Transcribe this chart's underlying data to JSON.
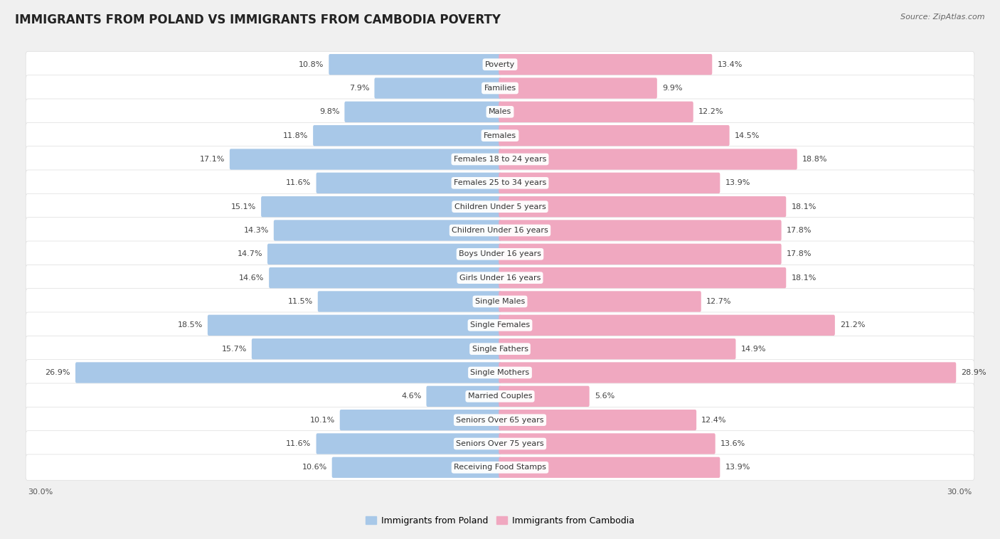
{
  "title": "IMMIGRANTS FROM POLAND VS IMMIGRANTS FROM CAMBODIA POVERTY",
  "source": "Source: ZipAtlas.com",
  "categories": [
    "Poverty",
    "Families",
    "Males",
    "Females",
    "Females 18 to 24 years",
    "Females 25 to 34 years",
    "Children Under 5 years",
    "Children Under 16 years",
    "Boys Under 16 years",
    "Girls Under 16 years",
    "Single Males",
    "Single Females",
    "Single Fathers",
    "Single Mothers",
    "Married Couples",
    "Seniors Over 65 years",
    "Seniors Over 75 years",
    "Receiving Food Stamps"
  ],
  "poland_values": [
    10.8,
    7.9,
    9.8,
    11.8,
    17.1,
    11.6,
    15.1,
    14.3,
    14.7,
    14.6,
    11.5,
    18.5,
    15.7,
    26.9,
    4.6,
    10.1,
    11.6,
    10.6
  ],
  "cambodia_values": [
    13.4,
    9.9,
    12.2,
    14.5,
    18.8,
    13.9,
    18.1,
    17.8,
    17.8,
    18.1,
    12.7,
    21.2,
    14.9,
    28.9,
    5.6,
    12.4,
    13.6,
    13.9
  ],
  "poland_color": "#a8c8e8",
  "cambodia_color": "#f0a8c0",
  "poland_label": "Immigrants from Poland",
  "cambodia_label": "Immigrants from Cambodia",
  "background_color": "#f0f0f0",
  "row_bg_color": "#ffffff",
  "title_fontsize": 12,
  "source_fontsize": 8,
  "label_fontsize": 8,
  "value_fontsize": 8,
  "legend_fontsize": 9
}
